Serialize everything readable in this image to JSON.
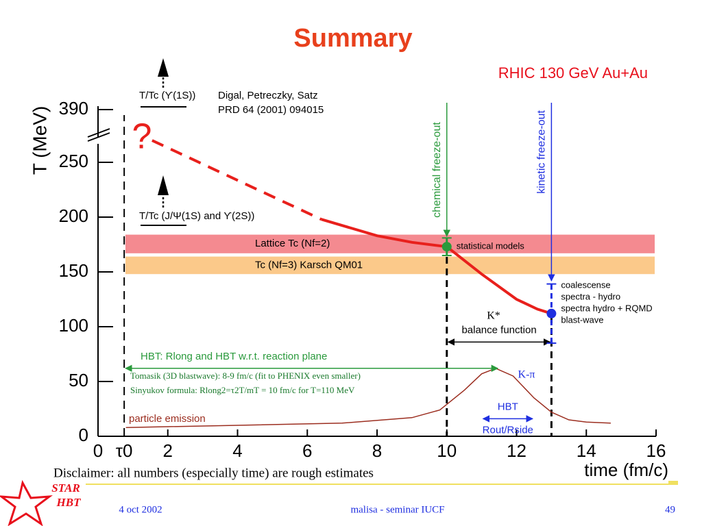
{
  "chart_data": {
    "type": "line",
    "title": "Summary",
    "subtitle": "RHIC 130 GeV Au+Au",
    "ylabel": "T (MeV)",
    "xlabel": "time (fm/c)",
    "xlim": [
      0,
      16
    ],
    "ylim": [
      0,
      390
    ],
    "xticks": [
      0,
      {
        "value": 0.75,
        "label": "τ0"
      },
      2,
      4,
      6,
      8,
      10,
      12,
      14,
      16
    ],
    "yticks": [
      0,
      50,
      100,
      150,
      200,
      250,
      390
    ],
    "axis_break": true,
    "series": [
      {
        "color": "#e8201c",
        "dashed": true,
        "x": [
          1.55,
          6.4
        ],
        "values": [
          308,
          198
        ]
      },
      {
        "color": "#e8201c",
        "dashed": false,
        "x": [
          6.4,
          8,
          9,
          10,
          11,
          12,
          12.6,
          13
        ],
        "values": [
          198,
          183,
          177,
          173,
          148,
          125,
          116,
          112
        ]
      },
      {
        "color": "#9b2d1f",
        "dashed": false,
        "x": [
          0.8,
          4,
          7,
          9,
          9.8,
          10.5,
          11,
          11.4,
          11.9,
          12.5,
          13,
          13.5,
          14,
          14.7
        ],
        "values": [
          8,
          10,
          12,
          17,
          24,
          42,
          57,
          62,
          55,
          35,
          22,
          15,
          13,
          12
        ]
      }
    ],
    "bands": [
      {
        "label": "Lattice Tc (Nf=2)",
        "range": [
          167,
          184
        ],
        "color": "#f48a90"
      },
      {
        "label": "Tc (Nf=3)   Karsch QM01",
        "range": [
          148,
          164
        ],
        "color": "#fbc98a"
      }
    ],
    "vlines": [
      {
        "label": "chemical freeze-out",
        "x": 10,
        "color": "#2a9a3c"
      },
      {
        "label": "kinetic freeze-out",
        "x": 13,
        "color": "#1f2fe0"
      }
    ],
    "points": [
      {
        "x": 10,
        "value": 173,
        "error": 8,
        "color": "#2a9a3c",
        "labels": [
          "statistical models"
        ]
      },
      {
        "x": 13,
        "value": 112,
        "error": 27,
        "color": "#1f2fe0",
        "labels": [
          "coalescense",
          "spectra - hydro",
          "spectra hydro + RQMD",
          "blast-wave"
        ]
      }
    ],
    "spans": [
      {
        "label": "HBT:  Rlong and HBT w.r.t. reaction plane",
        "x": [
          0.75,
          11.5
        ],
        "value": 62,
        "color": "#2a9a3c"
      },
      {
        "label": "balance function",
        "x": [
          10,
          13
        ],
        "value": 86,
        "color": "#000000"
      },
      {
        "label": "HBT",
        "label2": "Rout/Rside",
        "x": [
          11,
          12.5
        ],
        "value": 16,
        "color": "#1f2fe0"
      }
    ],
    "annotations": {
      "upsilon": "T/Tc (ϒ(1S))",
      "ref1": "Digal, Petreczky, Satz",
      "ref2": "PRD 64 (2001) 094015",
      "jpsi": "T/Tc (J/Ψ(1S) and ϒ(2S))",
      "question": "?",
      "kstar": "K*",
      "kpi": "K-π",
      "tomasik": "Tomasik (3D blastwave): 8-9 fm/c (fit to PHENIX even smaller)",
      "sinyukov": "Sinyukov formula: Rlong2=τ2T/mT = 10 fm/c for T=110 MeV",
      "emission": "particle emission",
      "disclaimer": "Disclaimer: all numbers (especially time) are rough estimates"
    }
  },
  "footer": {
    "logo": [
      "STAR",
      "HBT"
    ],
    "date": "4 oct 2002",
    "center": "malisa - seminar IUCF",
    "page": "49"
  }
}
